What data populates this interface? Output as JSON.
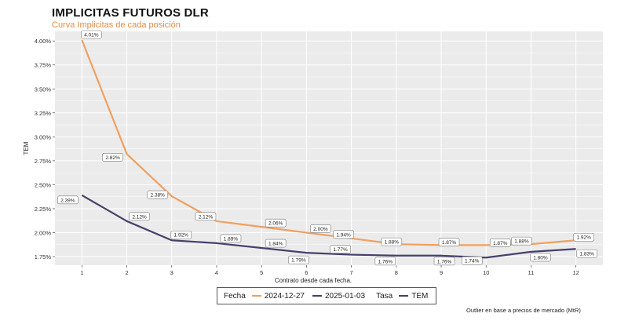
{
  "title": "IMPLICITAS FUTUROS DLR",
  "subtitle": "Curva Implicitas de cada posición",
  "caption": "Outlier en base a precios de mercado (MtR)",
  "colors": {
    "series1": "#f0a060",
    "series2": "#46406a",
    "panel": "#ebebeb",
    "grid": "#ffffff",
    "title_accent": "#e8893f"
  },
  "legend": {
    "group1_title": "Fecha",
    "items1": [
      "2024-12-27",
      "2025-01-03"
    ],
    "group2_title": "Tasa",
    "items2": [
      "TEM"
    ]
  },
  "chart_data": {
    "type": "line",
    "title": "IMPLICITAS FUTUROS DLR",
    "subtitle": "Curva Implicitas de cada posición",
    "xlabel": "Contrato desde cada fecha.",
    "ylabel": "TEM",
    "x": [
      1,
      2,
      3,
      4,
      5,
      6,
      7,
      8,
      9,
      10,
      11,
      12
    ],
    "xlim": [
      0.4,
      12.6
    ],
    "ylim": [
      1.66,
      4.1
    ],
    "y_ticks": [
      1.75,
      2.0,
      2.25,
      2.5,
      2.75,
      3.0,
      3.25,
      3.5,
      3.75,
      4.0
    ],
    "y_tick_labels": [
      "1.75%",
      "2.00%",
      "2.25%",
      "2.50%",
      "2.75%",
      "3.00%",
      "3.25%",
      "3.50%",
      "3.75%",
      "4.00%"
    ],
    "x_tick_labels": [
      "1",
      "2",
      "3",
      "4",
      "5",
      "6",
      "7",
      "8",
      "9",
      "10",
      "11",
      "12"
    ],
    "grid": true,
    "legend_position": "bottom",
    "series": [
      {
        "name": "2024-12-27",
        "values": [
          4.01,
          2.82,
          2.38,
          2.12,
          2.06,
          2.0,
          1.94,
          1.88,
          1.87,
          1.87,
          1.88,
          1.92
        ],
        "labels": [
          "4.01%",
          "2.82%",
          "2.38%",
          "2.12%",
          "2.06%",
          "2.00%",
          "1.94%",
          "1.88%",
          "1.87%",
          "1.87%",
          "1.88%",
          "1.92%"
        ]
      },
      {
        "name": "2025-01-03",
        "values": [
          2.39,
          2.12,
          1.92,
          1.89,
          1.84,
          1.79,
          1.77,
          1.76,
          1.76,
          1.74,
          1.8,
          1.83
        ],
        "labels": [
          "2.39%",
          "2.12%",
          "1.92%",
          "1.89%",
          "1.84%",
          "1.79%",
          "1.77%",
          "1.76%",
          "1.76%",
          "1.74%",
          "1.80%",
          "1.83%"
        ]
      }
    ]
  }
}
